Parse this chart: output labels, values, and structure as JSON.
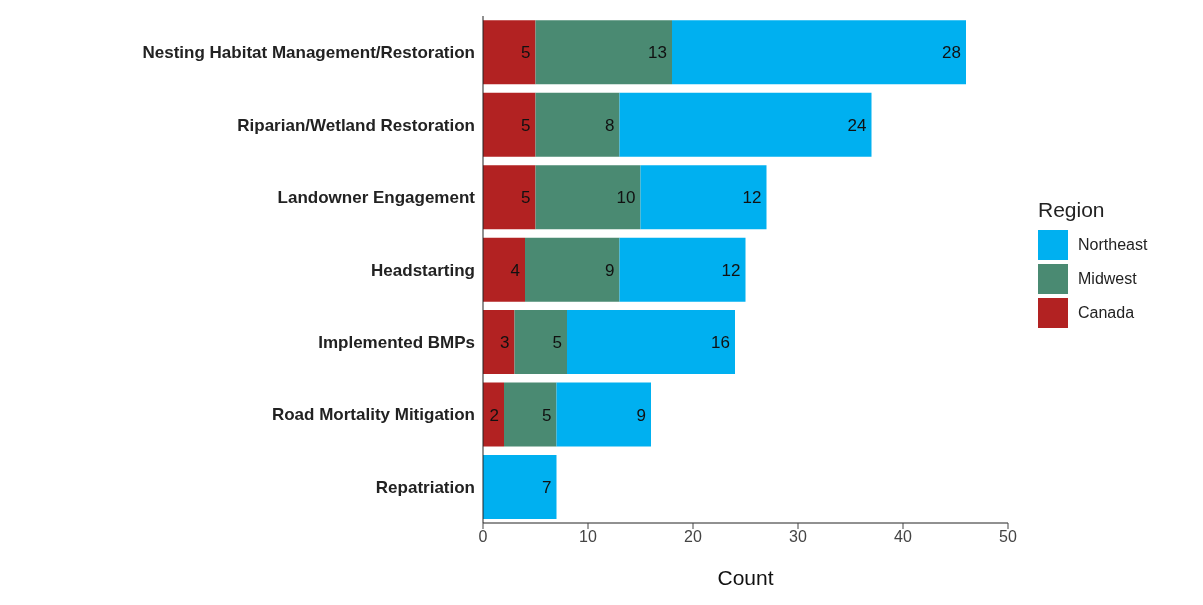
{
  "chart_data": {
    "type": "bar",
    "orientation": "horizontal",
    "stacked": true,
    "xlabel": "Count",
    "legend_title": "Region",
    "legend": "right",
    "data_labels": true,
    "grid": false,
    "categories": [
      "Nesting Habitat Management/Restoration",
      "Riparian/Wetland Restoration",
      "Landowner Engagement",
      "Headstarting",
      "Implemented BMPs",
      "Road Mortality Mitigation",
      "Repatriation"
    ],
    "xlim": [
      0,
      50
    ],
    "xticks": [
      0,
      10,
      20,
      30,
      40,
      50
    ],
    "series": [
      {
        "name": "Canada",
        "color": "#b22222",
        "values": [
          5,
          5,
          5,
          4,
          3,
          2,
          null
        ]
      },
      {
        "name": "Midwest",
        "color": "#4a8a72",
        "values": [
          13,
          8,
          10,
          9,
          5,
          5,
          null
        ]
      },
      {
        "name": "Northeast",
        "color": "#00b0f0",
        "values": [
          28,
          24,
          12,
          12,
          16,
          9,
          7
        ]
      }
    ]
  }
}
